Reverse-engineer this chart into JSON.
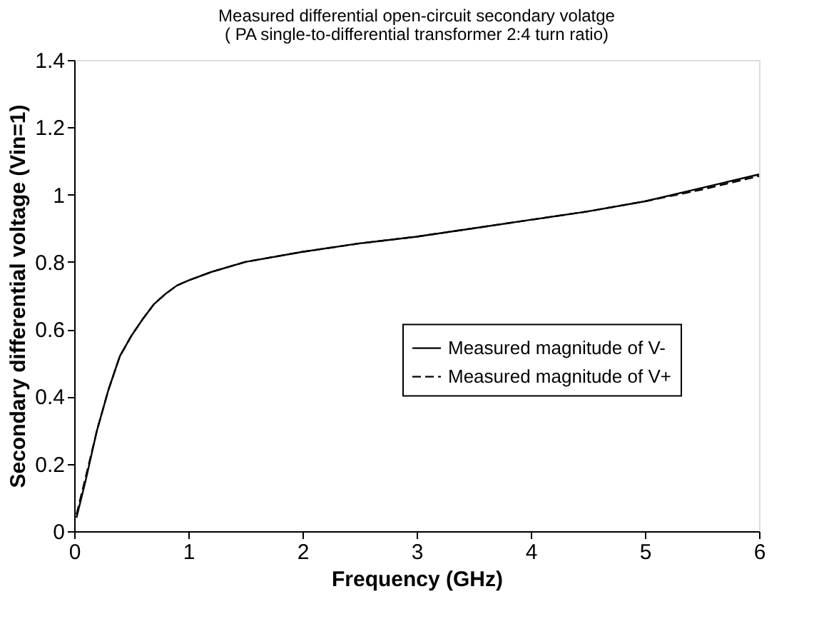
{
  "chart_data": {
    "type": "line",
    "title": "Measured differential open-circuit secondary  volatge",
    "subtitle": "( PA single-to-differential transformer 2:4 turn ratio)",
    "xlabel": "Frequency (GHz)",
    "ylabel": "Secondary differential voltage (Vin=1)",
    "x": [
      0.02,
      0.1,
      0.2,
      0.3,
      0.4,
      0.5,
      0.6,
      0.7,
      0.8,
      0.9,
      1.0,
      1.2,
      1.5,
      2.0,
      2.5,
      3.0,
      3.5,
      4.0,
      4.5,
      5.0,
      5.5,
      6.0
    ],
    "series": [
      {
        "name": "Measured magnitude of V-",
        "color": "#000000",
        "line_style": "solid",
        "values": [
          0.04,
          0.15,
          0.3,
          0.42,
          0.52,
          0.58,
          0.63,
          0.675,
          0.705,
          0.73,
          0.745,
          0.77,
          0.8,
          0.83,
          0.855,
          0.875,
          0.9,
          0.925,
          0.95,
          0.98,
          1.02,
          1.06
        ]
      },
      {
        "name": "Measured magnitude of V+",
        "color": "#000000",
        "line_style": "dashed",
        "values": [
          0.05,
          0.16,
          0.3,
          0.42,
          0.52,
          0.58,
          0.63,
          0.675,
          0.705,
          0.73,
          0.745,
          0.77,
          0.8,
          0.83,
          0.855,
          0.875,
          0.9,
          0.925,
          0.95,
          0.98,
          1.015,
          1.055
        ]
      }
    ],
    "xlim": [
      0,
      6
    ],
    "xticks": [
      0,
      1,
      2,
      3,
      4,
      5,
      6
    ],
    "ylim": [
      0,
      1.4
    ],
    "yticks": [
      0,
      0.2,
      0.4,
      0.6,
      0.8,
      1,
      1.2,
      1.4
    ],
    "grid": false,
    "legend": "right",
    "marker": "none"
  }
}
